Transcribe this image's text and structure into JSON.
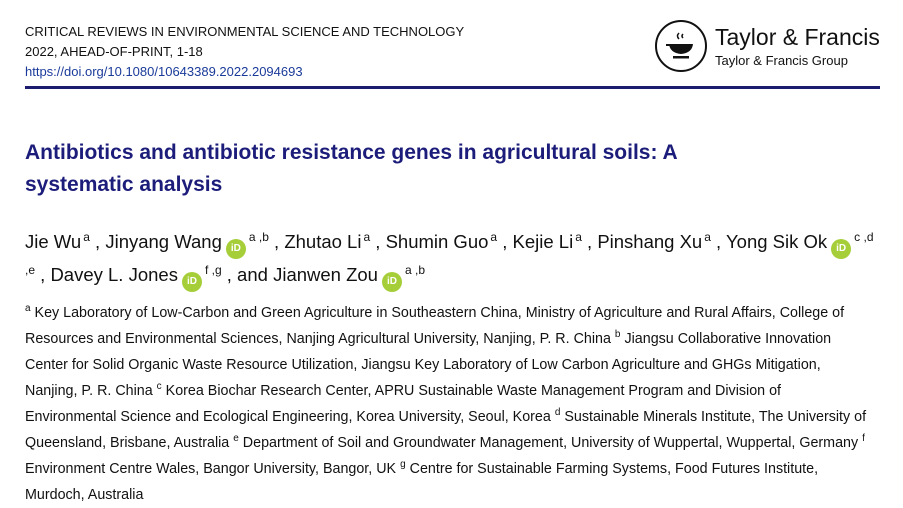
{
  "header": {
    "journal": "CRITICAL REVIEWS IN ENVIRONMENTAL SCIENCE AND TECHNOLOGY",
    "issue": "2022, AHEAD-OF-PRINT, 1-18",
    "doi": "https://doi.org/10.1080/10643389.2022.2094693"
  },
  "publisher": {
    "name": "Taylor & Francis",
    "group": "Taylor & Francis Group",
    "icon": "teacup-lamp-logo"
  },
  "colors": {
    "title": "#1c1c7a",
    "rule": "#1c1c6e",
    "orcid": "#a6ce39",
    "link": "#1a3a9a"
  },
  "title": "Antibiotics and antibiotic resistance genes in agricultural soils: A systematic analysis",
  "authors": [
    {
      "name": "Jie Wu",
      "sup": "a",
      "orcid": false,
      "sep": " ,"
    },
    {
      "name": "Jinyang Wang",
      "sup": "a ,b",
      "orcid": true,
      "sep": " ,"
    },
    {
      "name": "Zhutao Li",
      "sup": "a",
      "orcid": false,
      "sep": " ,"
    },
    {
      "name": "Shumin Guo",
      "sup": "a",
      "orcid": false,
      "sep": " ,"
    },
    {
      "name": "Kejie Li",
      "sup": "a",
      "orcid": false,
      "sep": " ,"
    },
    {
      "name": "Pinshang Xu",
      "sup": "a",
      "orcid": false,
      "sep": " ,"
    },
    {
      "name": "Yong Sik Ok",
      "sup": "c ,d ,e",
      "orcid": true,
      "sep": " ,"
    },
    {
      "name": "Davey L. Jones",
      "sup": "f ,g",
      "orcid": true,
      "sep": " , and"
    },
    {
      "name": "Jianwen Zou",
      "sup": "a ,b",
      "orcid": true,
      "sep": ""
    }
  ],
  "orcid_label": "iD",
  "affiliations": [
    {
      "sup": "a",
      "text": "Key Laboratory of Low-Carbon and Green Agriculture in Southeastern China, Ministry of Agriculture and Rural Affairs, College of Resources and Environmental Sciences, Nanjing Agricultural University, Nanjing, P. R. China"
    },
    {
      "sup": "b",
      "text": "Jiangsu Collaborative Innovation Center for Solid Organic Waste Resource Utilization, Jiangsu Key Laboratory of Low Carbon Agriculture and GHGs Mitigation, Nanjing, P. R. China"
    },
    {
      "sup": "c",
      "text": "Korea Biochar Research Center, APRU Sustainable Waste Management Program and Division of Environmental Science and Ecological Engineering, Korea University, Seoul, Korea"
    },
    {
      "sup": "d",
      "text": "Sustainable Minerals Institute, The University of Queensland, Brisbane, Australia"
    },
    {
      "sup": "e",
      "text": "Department of Soil and Groundwater Management, University of Wuppertal, Wuppertal, Germany"
    },
    {
      "sup": "f",
      "text": "Environment Centre Wales, Bangor University, Bangor, UK"
    },
    {
      "sup": "g",
      "text": "Centre for Sustainable Farming Systems, Food Futures Institute, Murdoch, Australia"
    }
  ]
}
